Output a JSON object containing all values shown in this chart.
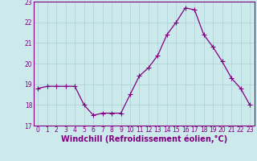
{
  "x": [
    0,
    1,
    2,
    3,
    4,
    5,
    6,
    7,
    8,
    9,
    10,
    11,
    12,
    13,
    14,
    15,
    16,
    17,
    18,
    19,
    20,
    21,
    22,
    23
  ],
  "y": [
    18.8,
    18.9,
    18.9,
    18.9,
    18.9,
    18.0,
    17.5,
    17.6,
    17.6,
    17.6,
    18.5,
    19.4,
    19.8,
    20.4,
    21.4,
    22.0,
    22.7,
    22.6,
    21.4,
    20.8,
    20.1,
    19.3,
    18.8,
    18.0
  ],
  "line_color": "#800080",
  "marker": "+",
  "marker_size": 4,
  "bg_color": "#cce9ec",
  "grid_color": "#aad0d8",
  "xlabel": "Windchill (Refroidissement éolien,°C)",
  "xlabel_fontsize": 7,
  "tick_label_color": "#800080",
  "ylim": [
    17,
    23
  ],
  "xlim": [
    -0.5,
    23.5
  ],
  "yticks": [
    17,
    18,
    19,
    20,
    21,
    22,
    23
  ],
  "xticks": [
    0,
    1,
    2,
    3,
    4,
    5,
    6,
    7,
    8,
    9,
    10,
    11,
    12,
    13,
    14,
    15,
    16,
    17,
    18,
    19,
    20,
    21,
    22,
    23
  ],
  "tick_fontsize": 5.5,
  "spine_color": "#800080",
  "title_color": "#800080",
  "linewidth": 0.9
}
